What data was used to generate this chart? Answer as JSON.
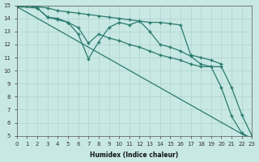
{
  "xlabel": "Humidex (Indice chaleur)",
  "bg_color": "#c8e8e4",
  "grid_color": "#aacccc",
  "line_color": "#2a7a6e",
  "xlim": [
    0,
    23
  ],
  "ylim": [
    5,
    15
  ],
  "xticks": [
    0,
    1,
    2,
    3,
    4,
    5,
    6,
    7,
    8,
    9,
    10,
    11,
    12,
    13,
    14,
    15,
    16,
    17,
    18,
    19,
    20,
    21,
    22,
    23
  ],
  "yticks": [
    5,
    6,
    7,
    8,
    9,
    10,
    11,
    12,
    13,
    14,
    15
  ],
  "lines": [
    {
      "x": [
        0,
        1,
        2,
        3,
        4,
        5,
        6,
        7,
        8,
        9,
        10,
        11,
        12,
        13,
        14,
        15,
        16,
        17,
        18,
        19,
        20
      ],
      "y": [
        14.9,
        15.0,
        14.9,
        14.8,
        14.6,
        14.5,
        14.4,
        14.3,
        14.2,
        14.1,
        14.0,
        13.9,
        13.8,
        13.7,
        13.7,
        13.6,
        13.5,
        11.2,
        11.0,
        10.8,
        10.5
      ]
    },
    {
      "x": [
        0,
        1,
        2,
        3,
        4,
        5,
        6,
        7,
        8,
        9,
        10,
        11,
        12,
        13,
        14,
        15,
        16,
        17,
        18,
        19,
        20,
        21,
        22,
        23
      ],
      "y": [
        14.9,
        15.0,
        14.8,
        14.1,
        14.0,
        13.7,
        12.8,
        10.9,
        12.2,
        13.3,
        13.7,
        13.5,
        13.8,
        13.0,
        12.0,
        11.8,
        11.5,
        11.1,
        10.5,
        10.3,
        8.7,
        6.5,
        5.2,
        4.8
      ]
    },
    {
      "x": [
        0,
        2,
        3,
        4,
        5,
        6,
        7,
        8,
        9,
        10,
        11,
        12,
        13,
        14,
        15,
        16,
        17,
        18,
        19,
        20,
        21,
        22,
        23
      ],
      "y": [
        14.9,
        14.8,
        14.1,
        13.9,
        13.7,
        13.3,
        12.1,
        12.8,
        12.5,
        12.3,
        12.0,
        11.8,
        11.5,
        11.2,
        11.0,
        10.8,
        10.5,
        10.3,
        10.3,
        10.3,
        8.7,
        6.6,
        5.0
      ]
    },
    {
      "x": [
        0,
        23
      ],
      "y": [
        14.9,
        4.7
      ]
    }
  ]
}
